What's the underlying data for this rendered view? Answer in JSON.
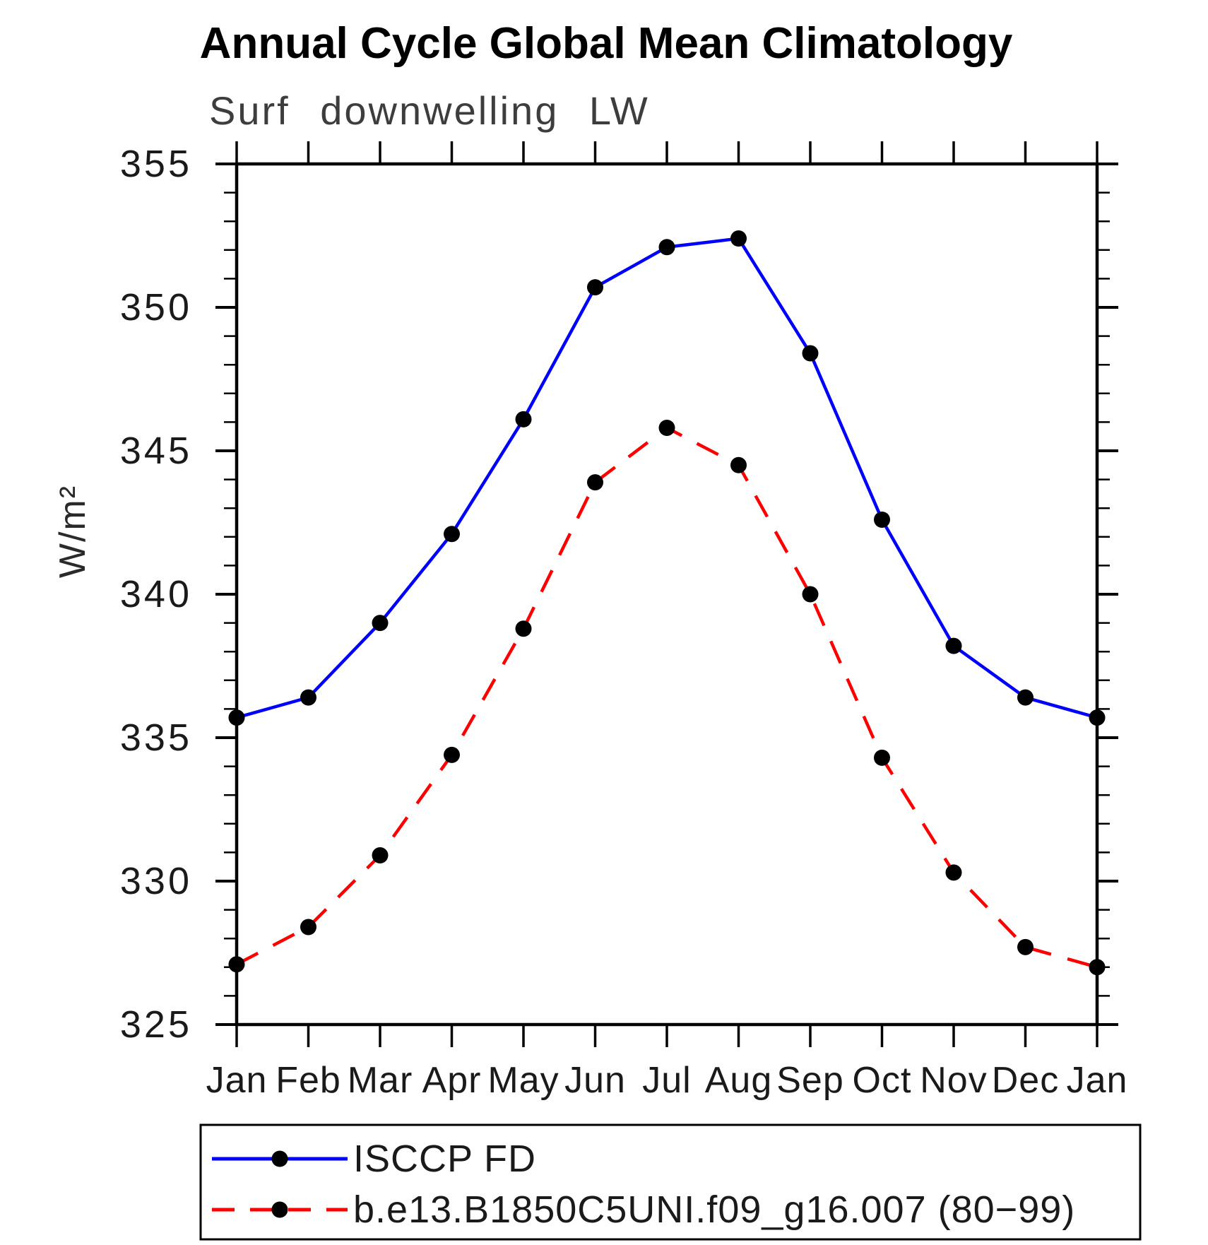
{
  "title": "Annual Cycle Global Mean Climatology",
  "chart_data": {
    "type": "line",
    "title": "Annual Cycle Global Mean Climatology",
    "subtitle": "Surf downwelling LW",
    "ylabel": "W/m²",
    "xlabel": "",
    "categories": [
      "Jan",
      "Feb",
      "Mar",
      "Apr",
      "May",
      "Jun",
      "Jul",
      "Aug",
      "Sep",
      "Oct",
      "Nov",
      "Dec",
      "Jan"
    ],
    "ylim": [
      325,
      355
    ],
    "ytick_major_step": 5,
    "ytick_minor_step": 1,
    "ytick_major_labels": [
      "355",
      "350",
      "345",
      "340",
      "335",
      "330",
      "325"
    ],
    "grid": false,
    "legend_position": "bottom",
    "marker_color": "#000000",
    "series": [
      {
        "name": "ISCCP FD",
        "color": "#0000ff",
        "style": "solid",
        "marker": "circle",
        "values": [
          335.7,
          336.4,
          339.0,
          342.1,
          346.1,
          350.7,
          352.1,
          352.4,
          348.4,
          342.6,
          338.2,
          336.4,
          335.7
        ]
      },
      {
        "name": "b.e13.B1850C5UNI.f09_g16.007 (80−99)",
        "color": "#ff0000",
        "style": "dashed",
        "marker": "circle",
        "values": [
          327.1,
          328.4,
          330.9,
          334.4,
          338.8,
          343.9,
          345.8,
          344.5,
          340.0,
          334.3,
          330.3,
          327.7,
          327.0
        ]
      }
    ]
  }
}
